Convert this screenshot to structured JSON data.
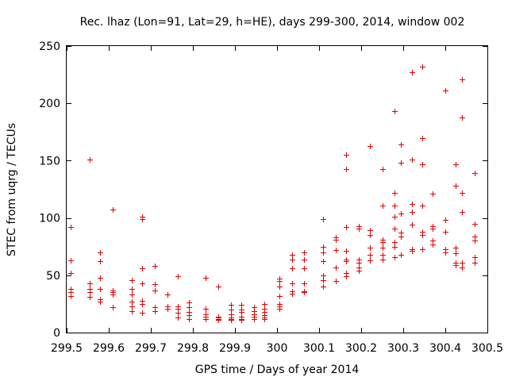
{
  "chart_data": {
    "type": "scatter",
    "title": "Rec. lhaz (Lon=91, Lat=29, h=HE), days 299-300, 2014, window 002",
    "xlabel": "GPS time / Days of year 2014",
    "ylabel": "STEC from uqrg / TECUs",
    "xlim": [
      299.5,
      300.5
    ],
    "ylim": [
      0,
      250
    ],
    "x_ticks": [
      299.5,
      299.6,
      299.7,
      299.8,
      299.9,
      300,
      300.1,
      300.2,
      300.3,
      300.4,
      300.5
    ],
    "x_tick_labels": [
      "299.5",
      "299.6",
      "299.7",
      "299.8",
      "299.9",
      "300",
      "300.1",
      "300.2",
      "300.3",
      "300.4",
      "300.5"
    ],
    "y_ticks": [
      0,
      50,
      100,
      150,
      200,
      250
    ],
    "y_tick_labels": [
      "0",
      "50",
      "100",
      "150",
      "200",
      "250"
    ],
    "marker": "plus",
    "color": "#e00000",
    "grid": false,
    "legend": false,
    "series": [
      {
        "name": "STEC",
        "points": [
          [
            299.51,
            92
          ],
          [
            299.51,
            63
          ],
          [
            299.51,
            52
          ],
          [
            299.51,
            38
          ],
          [
            299.51,
            35
          ],
          [
            299.51,
            32
          ],
          [
            299.555,
            151
          ],
          [
            299.555,
            43
          ],
          [
            299.555,
            38
          ],
          [
            299.555,
            35
          ],
          [
            299.555,
            31
          ],
          [
            299.58,
            70
          ],
          [
            299.58,
            62
          ],
          [
            299.58,
            48
          ],
          [
            299.58,
            38
          ],
          [
            299.58,
            29
          ],
          [
            299.58,
            27
          ],
          [
            299.61,
            107
          ],
          [
            299.61,
            37
          ],
          [
            299.61,
            35
          ],
          [
            299.61,
            33
          ],
          [
            299.61,
            22
          ],
          [
            299.655,
            46
          ],
          [
            299.655,
            38
          ],
          [
            299.655,
            33
          ],
          [
            299.655,
            27
          ],
          [
            299.655,
            23
          ],
          [
            299.655,
            19
          ],
          [
            299.68,
            101
          ],
          [
            299.68,
            99
          ],
          [
            299.68,
            56
          ],
          [
            299.68,
            43
          ],
          [
            299.68,
            28
          ],
          [
            299.68,
            25
          ],
          [
            299.68,
            17
          ],
          [
            299.71,
            58
          ],
          [
            299.71,
            42
          ],
          [
            299.71,
            37
          ],
          [
            299.71,
            22
          ],
          [
            299.71,
            19
          ],
          [
            299.74,
            33
          ],
          [
            299.74,
            23
          ],
          [
            299.74,
            21
          ],
          [
            299.765,
            49
          ],
          [
            299.765,
            23
          ],
          [
            299.765,
            21
          ],
          [
            299.765,
            17
          ],
          [
            299.765,
            13
          ],
          [
            299.79,
            26
          ],
          [
            299.79,
            22
          ],
          [
            299.79,
            18
          ],
          [
            299.79,
            15
          ],
          [
            299.79,
            12
          ],
          [
            299.83,
            48
          ],
          [
            299.83,
            21
          ],
          [
            299.83,
            16
          ],
          [
            299.83,
            14
          ],
          [
            299.83,
            12
          ],
          [
            299.86,
            40
          ],
          [
            299.86,
            14
          ],
          [
            299.86,
            13
          ],
          [
            299.86,
            12
          ],
          [
            299.86,
            11
          ],
          [
            299.89,
            24
          ],
          [
            299.89,
            20
          ],
          [
            299.89,
            16
          ],
          [
            299.89,
            13
          ],
          [
            299.89,
            12
          ],
          [
            299.89,
            11
          ],
          [
            299.915,
            24
          ],
          [
            299.915,
            20
          ],
          [
            299.915,
            18
          ],
          [
            299.915,
            14
          ],
          [
            299.915,
            12
          ],
          [
            299.915,
            11
          ],
          [
            299.945,
            22
          ],
          [
            299.945,
            19
          ],
          [
            299.945,
            16
          ],
          [
            299.945,
            14
          ],
          [
            299.945,
            12
          ],
          [
            299.97,
            25
          ],
          [
            299.97,
            21
          ],
          [
            299.97,
            18
          ],
          [
            299.97,
            15
          ],
          [
            299.97,
            13
          ],
          [
            299.97,
            12
          ],
          [
            300.005,
            47
          ],
          [
            300.005,
            45
          ],
          [
            300.005,
            40
          ],
          [
            300.005,
            32
          ],
          [
            300.005,
            25
          ],
          [
            300.005,
            23
          ],
          [
            300.005,
            21
          ],
          [
            300.035,
            68
          ],
          [
            300.035,
            64
          ],
          [
            300.035,
            56
          ],
          [
            300.035,
            43
          ],
          [
            300.035,
            36
          ],
          [
            300.035,
            34
          ],
          [
            300.065,
            70
          ],
          [
            300.065,
            64
          ],
          [
            300.065,
            56
          ],
          [
            300.065,
            43
          ],
          [
            300.065,
            36
          ],
          [
            300.065,
            35
          ],
          [
            300.11,
            99
          ],
          [
            300.11,
            75
          ],
          [
            300.11,
            70
          ],
          [
            300.11,
            62
          ],
          [
            300.11,
            50
          ],
          [
            300.11,
            46
          ],
          [
            300.11,
            40
          ],
          [
            300.14,
            83
          ],
          [
            300.14,
            81
          ],
          [
            300.14,
            72
          ],
          [
            300.14,
            57
          ],
          [
            300.14,
            45
          ],
          [
            300.165,
            155
          ],
          [
            300.165,
            143
          ],
          [
            300.165,
            92
          ],
          [
            300.165,
            71
          ],
          [
            300.165,
            64
          ],
          [
            300.165,
            62
          ],
          [
            300.165,
            52
          ],
          [
            300.165,
            49
          ],
          [
            300.195,
            93
          ],
          [
            300.195,
            91
          ],
          [
            300.195,
            64
          ],
          [
            300.195,
            61
          ],
          [
            300.195,
            57
          ],
          [
            300.195,
            54
          ],
          [
            300.22,
            163
          ],
          [
            300.22,
            89
          ],
          [
            300.22,
            85
          ],
          [
            300.22,
            74
          ],
          [
            300.22,
            68
          ],
          [
            300.22,
            63
          ],
          [
            300.25,
            143
          ],
          [
            300.25,
            111
          ],
          [
            300.25,
            81
          ],
          [
            300.25,
            79
          ],
          [
            300.25,
            74
          ],
          [
            300.25,
            68
          ],
          [
            300.25,
            64
          ],
          [
            300.28,
            193
          ],
          [
            300.28,
            122
          ],
          [
            300.28,
            111
          ],
          [
            300.28,
            101
          ],
          [
            300.28,
            91
          ],
          [
            300.28,
            79
          ],
          [
            300.28,
            75
          ],
          [
            300.28,
            66
          ],
          [
            300.295,
            164
          ],
          [
            300.295,
            148
          ],
          [
            300.295,
            104
          ],
          [
            300.295,
            87
          ],
          [
            300.295,
            84
          ],
          [
            300.295,
            68
          ],
          [
            300.32,
            227
          ],
          [
            300.32,
            151
          ],
          [
            300.32,
            112
          ],
          [
            300.32,
            105
          ],
          [
            300.32,
            94
          ],
          [
            300.32,
            73
          ],
          [
            300.32,
            71
          ],
          [
            300.345,
            232
          ],
          [
            300.345,
            170
          ],
          [
            300.345,
            147
          ],
          [
            300.345,
            111
          ],
          [
            300.345,
            88
          ],
          [
            300.345,
            85
          ],
          [
            300.345,
            73
          ],
          [
            300.37,
            121
          ],
          [
            300.37,
            93
          ],
          [
            300.37,
            91
          ],
          [
            300.37,
            80
          ],
          [
            300.37,
            77
          ],
          [
            300.4,
            211
          ],
          [
            300.4,
            98
          ],
          [
            300.4,
            88
          ],
          [
            300.4,
            73
          ],
          [
            300.4,
            70
          ],
          [
            300.425,
            147
          ],
          [
            300.425,
            128
          ],
          [
            300.425,
            74
          ],
          [
            300.425,
            69
          ],
          [
            300.425,
            61
          ],
          [
            300.425,
            59
          ],
          [
            300.44,
            221
          ],
          [
            300.44,
            188
          ],
          [
            300.44,
            122
          ],
          [
            300.44,
            105
          ],
          [
            300.44,
            61
          ],
          [
            300.44,
            57
          ],
          [
            300.47,
            139
          ],
          [
            300.47,
            95
          ],
          [
            300.47,
            84
          ],
          [
            300.47,
            80
          ],
          [
            300.47,
            66
          ],
          [
            300.47,
            61
          ]
        ]
      }
    ]
  }
}
